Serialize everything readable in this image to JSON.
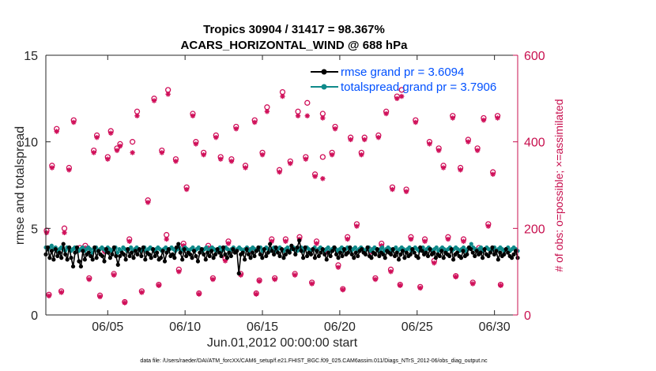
{
  "colors": {
    "rmse": "#000000",
    "spread": "#0f8a8a",
    "obs": "#d0105a",
    "right_axis": "#c8104f",
    "legend_text": "#0050ff"
  },
  "chart_data": {
    "type": "line",
    "title_line1": "Tropics 30904 / 31417 = 98.367%",
    "title_line2": "ACARS_HORIZONTAL_WIND @ 688 hPa",
    "xlabel": "Jun.01,2012 00:00:00 start",
    "ylabel_left": "rmse and totalspread",
    "ylabel_right": "# of obs: o=possible; ×=assimilated",
    "footnote": "data file: /Users/raeder/DAI/ATM_forcXX/CAM6_setup/f.e21.FHIST_BGC.f09_025.CAM6assim.011/Diags_NTrS_2012-06/obs_diag_output.nc",
    "xlim": [
      1,
      31.5
    ],
    "ylim_left": [
      0,
      15
    ],
    "ylim_right": [
      0,
      600
    ],
    "yticks_left": [
      "0",
      "5",
      "10",
      "15"
    ],
    "yticks_right": [
      "0",
      "200",
      "400",
      "600"
    ],
    "xtick_values": [
      5,
      10,
      15,
      20,
      25,
      30
    ],
    "xtick_labels": [
      "06/05",
      "06/10",
      "06/15",
      "06/20",
      "06/25",
      "06/30"
    ],
    "legend": {
      "rmse": "rmse grand pr = 3.6094",
      "spread": "totalspread grand pr = 3.7906",
      "position": "top-right"
    },
    "rmse": [
      3.5,
      3.9,
      3.3,
      3.7,
      3.2,
      3.8,
      3.4,
      3.6,
      3.3,
      4.1,
      3.5,
      3.2,
      3.9,
      3.3,
      2.8,
      3.6,
      3.9,
      3.1,
      2.8,
      3.7,
      3.2,
      3.5,
      3.6,
      3.4,
      3.2,
      3.9,
      3.3,
      3.7,
      3.5,
      3.4,
      3.1,
      3.8,
      3.6,
      3.3,
      3.5,
      3.9,
      3.4,
      2.9,
      3.4,
      3.6,
      3.5,
      3.2,
      3.8,
      3.4,
      3.6,
      3.3,
      3.7,
      3.5,
      3.8,
      3.4,
      3.9,
      3.2,
      3.6,
      3.5,
      3.3,
      3.8,
      3.4,
      3.6,
      3.2,
      3.3,
      3.7,
      3.1,
      3.6,
      3.8,
      3.4,
      3.5,
      3.3,
      3.9,
      4.1,
      3.6,
      3.2,
      3.8,
      3.4,
      3.6,
      3.5,
      3.3,
      3.7,
      3.4,
      3.1,
      3.6,
      3.8,
      3.5,
      3.2,
      3.6,
      3.4,
      3.7,
      3.3,
      3.5,
      3.8,
      3.6,
      3.4,
      3.9,
      3.5,
      3.3,
      3.6,
      3.4,
      3.8,
      3.6,
      3.7,
      2.4,
      3.5,
      3.6,
      3.2,
      3.8,
      3.5,
      3.3,
      3.6,
      3.4,
      3.7,
      3.9,
      3.5,
      3.3,
      3.8,
      3.4,
      3.6,
      4.1,
      3.7,
      3.5,
      3.9,
      3.6,
      3.4,
      3.8,
      3.3,
      3.5,
      3.7,
      3.6,
      4.0,
      3.8,
      3.5,
      3.9,
      4.3,
      3.7,
      3.3,
      3.9,
      3.4,
      3.6,
      3.5,
      3.8,
      3.3,
      3.7,
      3.4,
      3.6,
      3.8,
      3.5,
      3.2,
      3.6,
      3.4,
      3.7,
      3.9,
      3.5,
      3.3,
      3.6,
      3.4,
      3.8,
      3.5,
      3.6,
      3.9,
      3.5,
      3.3,
      3.6,
      3.4,
      3.7,
      3.8,
      3.6,
      3.5,
      3.9,
      3.4,
      3.3,
      3.6,
      3.5,
      3.8,
      3.4,
      3.6,
      3.5,
      3.3,
      3.7,
      3.6,
      3.5,
      3.8,
      3.4,
      3.6,
      3.2,
      3.5,
      3.7,
      3.3,
      3.6,
      3.4,
      3.5,
      3.8,
      3.6,
      3.4,
      3.3,
      3.9,
      3.7,
      3.5,
      3.6,
      3.4,
      3.8,
      3.5,
      3.6,
      3.3,
      3.5,
      3.4,
      3.7,
      3.3,
      3.6,
      3.5,
      3.4,
      3.8,
      3.2,
      3.5,
      3.6,
      3.4,
      3.3,
      3.7,
      3.4,
      3.5,
      3.9,
      3.8,
      3.6,
      3.4,
      3.7,
      3.5,
      3.6,
      3.3,
      3.8,
      3.5,
      3.4,
      3.6,
      3.9,
      3.5,
      3.7,
      3.2,
      3.6,
      3.4,
      3.5,
      3.8,
      3.6,
      3.4,
      3.3,
      3.5,
      3.7,
      3.3
    ],
    "spread": [
      3.9,
      3.8,
      3.9,
      4.0,
      3.8,
      3.9,
      3.7,
      3.8,
      3.9,
      3.8,
      3.7,
      3.9,
      3.8,
      3.7,
      3.8,
      3.9,
      3.8,
      3.7,
      3.8,
      3.9,
      3.7,
      3.8,
      3.9,
      3.8,
      3.6,
      3.8,
      3.9,
      3.7,
      3.8,
      3.9,
      3.8,
      3.7,
      3.9,
      3.8,
      3.7,
      3.8,
      3.9,
      3.6,
      3.8,
      3.7,
      3.9,
      3.8,
      3.7,
      3.8,
      3.9,
      3.7,
      3.8,
      3.9,
      3.8,
      3.7,
      3.8,
      3.9,
      3.7,
      3.8,
      3.9,
      3.8,
      3.7,
      3.8,
      3.9,
      3.8,
      3.7,
      3.8,
      3.9,
      3.7,
      3.8,
      3.9,
      3.8,
      3.7,
      3.8,
      3.9,
      3.7,
      3.8,
      3.9,
      3.8,
      3.7,
      3.8,
      3.9,
      3.7,
      3.8,
      3.9,
      3.8,
      3.7,
      3.8,
      3.9,
      3.7,
      3.8,
      3.9,
      3.8,
      3.7,
      3.8,
      3.9,
      3.7,
      3.8,
      3.9,
      3.8,
      3.7,
      3.8,
      3.9,
      3.7,
      3.8,
      3.9,
      3.8,
      3.7,
      3.8,
      3.9,
      3.7,
      3.8,
      3.9,
      3.8,
      3.7,
      3.8,
      3.9,
      3.7,
      3.8,
      3.9,
      3.8,
      3.7,
      3.8,
      3.9,
      3.7,
      3.8,
      3.9,
      3.8,
      3.7,
      3.8,
      3.9,
      3.7,
      3.8,
      3.9,
      3.8,
      3.7,
      3.8,
      3.9,
      3.7,
      3.8,
      3.9,
      3.8,
      3.7,
      3.8,
      3.9,
      3.7,
      3.8,
      3.9,
      3.8,
      3.7,
      3.8,
      3.9,
      3.7,
      3.8,
      3.9,
      3.8,
      3.7,
      3.8,
      3.9,
      3.7,
      3.8,
      3.9,
      3.8,
      3.7,
      3.8,
      3.9,
      3.7,
      3.8,
      3.9,
      3.8,
      3.7,
      3.8,
      3.9,
      3.7,
      3.8,
      3.9,
      3.8,
      3.7,
      3.8,
      3.9,
      3.7,
      3.8,
      3.9,
      3.8,
      3.7,
      3.8,
      3.9,
      3.7,
      3.8,
      3.9,
      3.8,
      3.7,
      3.8,
      3.9,
      3.7,
      3.8,
      3.9,
      3.8,
      3.7,
      3.8,
      3.9,
      3.7,
      3.8,
      3.9,
      3.8,
      3.7,
      3.8,
      3.9,
      3.7,
      3.8,
      3.9,
      3.8,
      3.7,
      3.8,
      3.9,
      3.7,
      3.8,
      3.9,
      3.8,
      3.7,
      3.8,
      3.9,
      3.7,
      3.8,
      3.9,
      4.1,
      3.9,
      3.8,
      3.7,
      3.8,
      3.9,
      3.7,
      3.8,
      3.9,
      3.8,
      3.7,
      3.8,
      3.9,
      3.7,
      3.8,
      3.9,
      3.8,
      3.7,
      3.8,
      3.9,
      3.7,
      3.8,
      3.9,
      3.8,
      3.7
    ],
    "obs_possible": [
      [
        1.05,
        195
      ],
      [
        1.2,
        47
      ],
      [
        1.4,
        345
      ],
      [
        1.7,
        430
      ],
      [
        2.0,
        55
      ],
      [
        2.2,
        200
      ],
      [
        2.5,
        340
      ],
      [
        2.8,
        450
      ],
      [
        3.2,
        155
      ],
      [
        3.55,
        160
      ],
      [
        3.8,
        85
      ],
      [
        4.1,
        380
      ],
      [
        4.3,
        415
      ],
      [
        4.5,
        45
      ],
      [
        4.8,
        150
      ],
      [
        5.0,
        365
      ],
      [
        5.2,
        425
      ],
      [
        5.4,
        95
      ],
      [
        5.6,
        385
      ],
      [
        5.8,
        395
      ],
      [
        6.1,
        30
      ],
      [
        6.4,
        175
      ],
      [
        6.6,
        400
      ],
      [
        6.9,
        470
      ],
      [
        7.2,
        55
      ],
      [
        7.6,
        265
      ],
      [
        8.0,
        500
      ],
      [
        8.3,
        70
      ],
      [
        8.5,
        380
      ],
      [
        8.8,
        185
      ],
      [
        8.9,
        520
      ],
      [
        9.4,
        360
      ],
      [
        9.6,
        105
      ],
      [
        9.9,
        165
      ],
      [
        10.1,
        295
      ],
      [
        10.5,
        465
      ],
      [
        10.7,
        400
      ],
      [
        10.9,
        50
      ],
      [
        11.2,
        375
      ],
      [
        11.5,
        160
      ],
      [
        11.8,
        85
      ],
      [
        12.0,
        415
      ],
      [
        12.3,
        365
      ],
      [
        12.6,
        130
      ],
      [
        12.8,
        170
      ],
      [
        13.0,
        360
      ],
      [
        13.3,
        435
      ],
      [
        13.6,
        95
      ],
      [
        13.9,
        345
      ],
      [
        14.2,
        150
      ],
      [
        14.5,
        450
      ],
      [
        14.6,
        50
      ],
      [
        14.8,
        80
      ],
      [
        15.0,
        375
      ],
      [
        15.3,
        480
      ],
      [
        15.6,
        175
      ],
      [
        15.8,
        85
      ],
      [
        16.1,
        335
      ],
      [
        16.3,
        515
      ],
      [
        16.5,
        175
      ],
      [
        16.8,
        355
      ],
      [
        17.1,
        95
      ],
      [
        17.3,
        470
      ],
      [
        17.4,
        180
      ],
      [
        17.8,
        365
      ],
      [
        17.9,
        490
      ],
      [
        18.2,
        75
      ],
      [
        18.4,
        325
      ],
      [
        18.5,
        170
      ],
      [
        18.9,
        465
      ],
      [
        18.9,
        365
      ],
      [
        19.2,
        150
      ],
      [
        19.5,
        375
      ],
      [
        19.7,
        435
      ],
      [
        19.9,
        115
      ],
      [
        20.2,
        60
      ],
      [
        20.5,
        180
      ],
      [
        20.7,
        410
      ],
      [
        21.1,
        210
      ],
      [
        21.4,
        375
      ],
      [
        21.6,
        410
      ],
      [
        22.0,
        150
      ],
      [
        22.3,
        85
      ],
      [
        22.5,
        415
      ],
      [
        22.7,
        165
      ],
      [
        23.0,
        470
      ],
      [
        23.3,
        105
      ],
      [
        23.4,
        295
      ],
      [
        23.7,
        505
      ],
      [
        23.9,
        70
      ],
      [
        24.0,
        520
      ],
      [
        24.3,
        290
      ],
      [
        24.6,
        180
      ],
      [
        24.9,
        450
      ],
      [
        25.2,
        65
      ],
      [
        25.5,
        175
      ],
      [
        25.8,
        400
      ],
      [
        26.1,
        125
      ],
      [
        26.4,
        385
      ],
      [
        26.7,
        345
      ],
      [
        27.0,
        180
      ],
      [
        27.3,
        460
      ],
      [
        27.5,
        90
      ],
      [
        27.8,
        340
      ],
      [
        28.0,
        175
      ],
      [
        28.3,
        405
      ],
      [
        28.6,
        75
      ],
      [
        28.9,
        385
      ],
      [
        29.0,
        155
      ],
      [
        29.3,
        455
      ],
      [
        29.6,
        210
      ],
      [
        29.9,
        330
      ],
      [
        30.2,
        460
      ],
      [
        30.4,
        70
      ]
    ],
    "obs_assimilated": [
      [
        1.05,
        190
      ],
      [
        1.2,
        44
      ],
      [
        1.4,
        340
      ],
      [
        1.7,
        424
      ],
      [
        2.0,
        52
      ],
      [
        2.2,
        190
      ],
      [
        2.5,
        335
      ],
      [
        2.8,
        445
      ],
      [
        3.2,
        150
      ],
      [
        3.55,
        155
      ],
      [
        3.8,
        82
      ],
      [
        4.1,
        375
      ],
      [
        4.3,
        410
      ],
      [
        4.5,
        42
      ],
      [
        4.8,
        146
      ],
      [
        5.0,
        360
      ],
      [
        5.2,
        420
      ],
      [
        5.4,
        92
      ],
      [
        5.6,
        380
      ],
      [
        5.8,
        390
      ],
      [
        6.1,
        28
      ],
      [
        6.4,
        170
      ],
      [
        6.6,
        375
      ],
      [
        6.9,
        460
      ],
      [
        7.2,
        52
      ],
      [
        7.6,
        260
      ],
      [
        8.0,
        495
      ],
      [
        8.3,
        68
      ],
      [
        8.5,
        375
      ],
      [
        8.8,
        175
      ],
      [
        8.9,
        510
      ],
      [
        9.4,
        355
      ],
      [
        9.6,
        100
      ],
      [
        9.9,
        160
      ],
      [
        10.1,
        290
      ],
      [
        10.5,
        460
      ],
      [
        10.7,
        395
      ],
      [
        10.9,
        48
      ],
      [
        11.2,
        370
      ],
      [
        11.5,
        155
      ],
      [
        11.8,
        82
      ],
      [
        12.0,
        410
      ],
      [
        12.3,
        360
      ],
      [
        12.6,
        125
      ],
      [
        12.8,
        165
      ],
      [
        13.0,
        355
      ],
      [
        13.3,
        430
      ],
      [
        13.6,
        92
      ],
      [
        13.9,
        340
      ],
      [
        14.2,
        146
      ],
      [
        14.5,
        445
      ],
      [
        14.6,
        48
      ],
      [
        14.8,
        78
      ],
      [
        15.0,
        370
      ],
      [
        15.3,
        470
      ],
      [
        15.6,
        170
      ],
      [
        15.8,
        82
      ],
      [
        16.1,
        330
      ],
      [
        16.3,
        505
      ],
      [
        16.5,
        170
      ],
      [
        16.8,
        350
      ],
      [
        17.1,
        92
      ],
      [
        17.3,
        460
      ],
      [
        17.4,
        175
      ],
      [
        17.8,
        360
      ],
      [
        17.9,
        460
      ],
      [
        18.2,
        72
      ],
      [
        18.4,
        320
      ],
      [
        18.5,
        165
      ],
      [
        18.9,
        455
      ],
      [
        18.9,
        315
      ],
      [
        19.2,
        145
      ],
      [
        19.5,
        370
      ],
      [
        19.7,
        430
      ],
      [
        19.9,
        110
      ],
      [
        20.2,
        58
      ],
      [
        20.5,
        175
      ],
      [
        20.7,
        405
      ],
      [
        21.1,
        205
      ],
      [
        21.4,
        370
      ],
      [
        21.6,
        405
      ],
      [
        22.0,
        145
      ],
      [
        22.3,
        82
      ],
      [
        22.5,
        410
      ],
      [
        22.7,
        160
      ],
      [
        23.0,
        465
      ],
      [
        23.3,
        100
      ],
      [
        23.4,
        290
      ],
      [
        23.7,
        500
      ],
      [
        23.9,
        68
      ],
      [
        24.0,
        505
      ],
      [
        24.3,
        285
      ],
      [
        24.6,
        175
      ],
      [
        24.9,
        445
      ],
      [
        25.2,
        62
      ],
      [
        25.5,
        170
      ],
      [
        25.8,
        395
      ],
      [
        26.1,
        120
      ],
      [
        26.4,
        380
      ],
      [
        26.7,
        340
      ],
      [
        27.0,
        175
      ],
      [
        27.3,
        455
      ],
      [
        27.5,
        88
      ],
      [
        27.8,
        335
      ],
      [
        28.0,
        170
      ],
      [
        28.3,
        400
      ],
      [
        28.6,
        72
      ],
      [
        28.9,
        380
      ],
      [
        29.0,
        150
      ],
      [
        29.3,
        450
      ],
      [
        29.6,
        205
      ],
      [
        29.9,
        325
      ],
      [
        30.2,
        455
      ],
      [
        30.4,
        68
      ]
    ]
  }
}
